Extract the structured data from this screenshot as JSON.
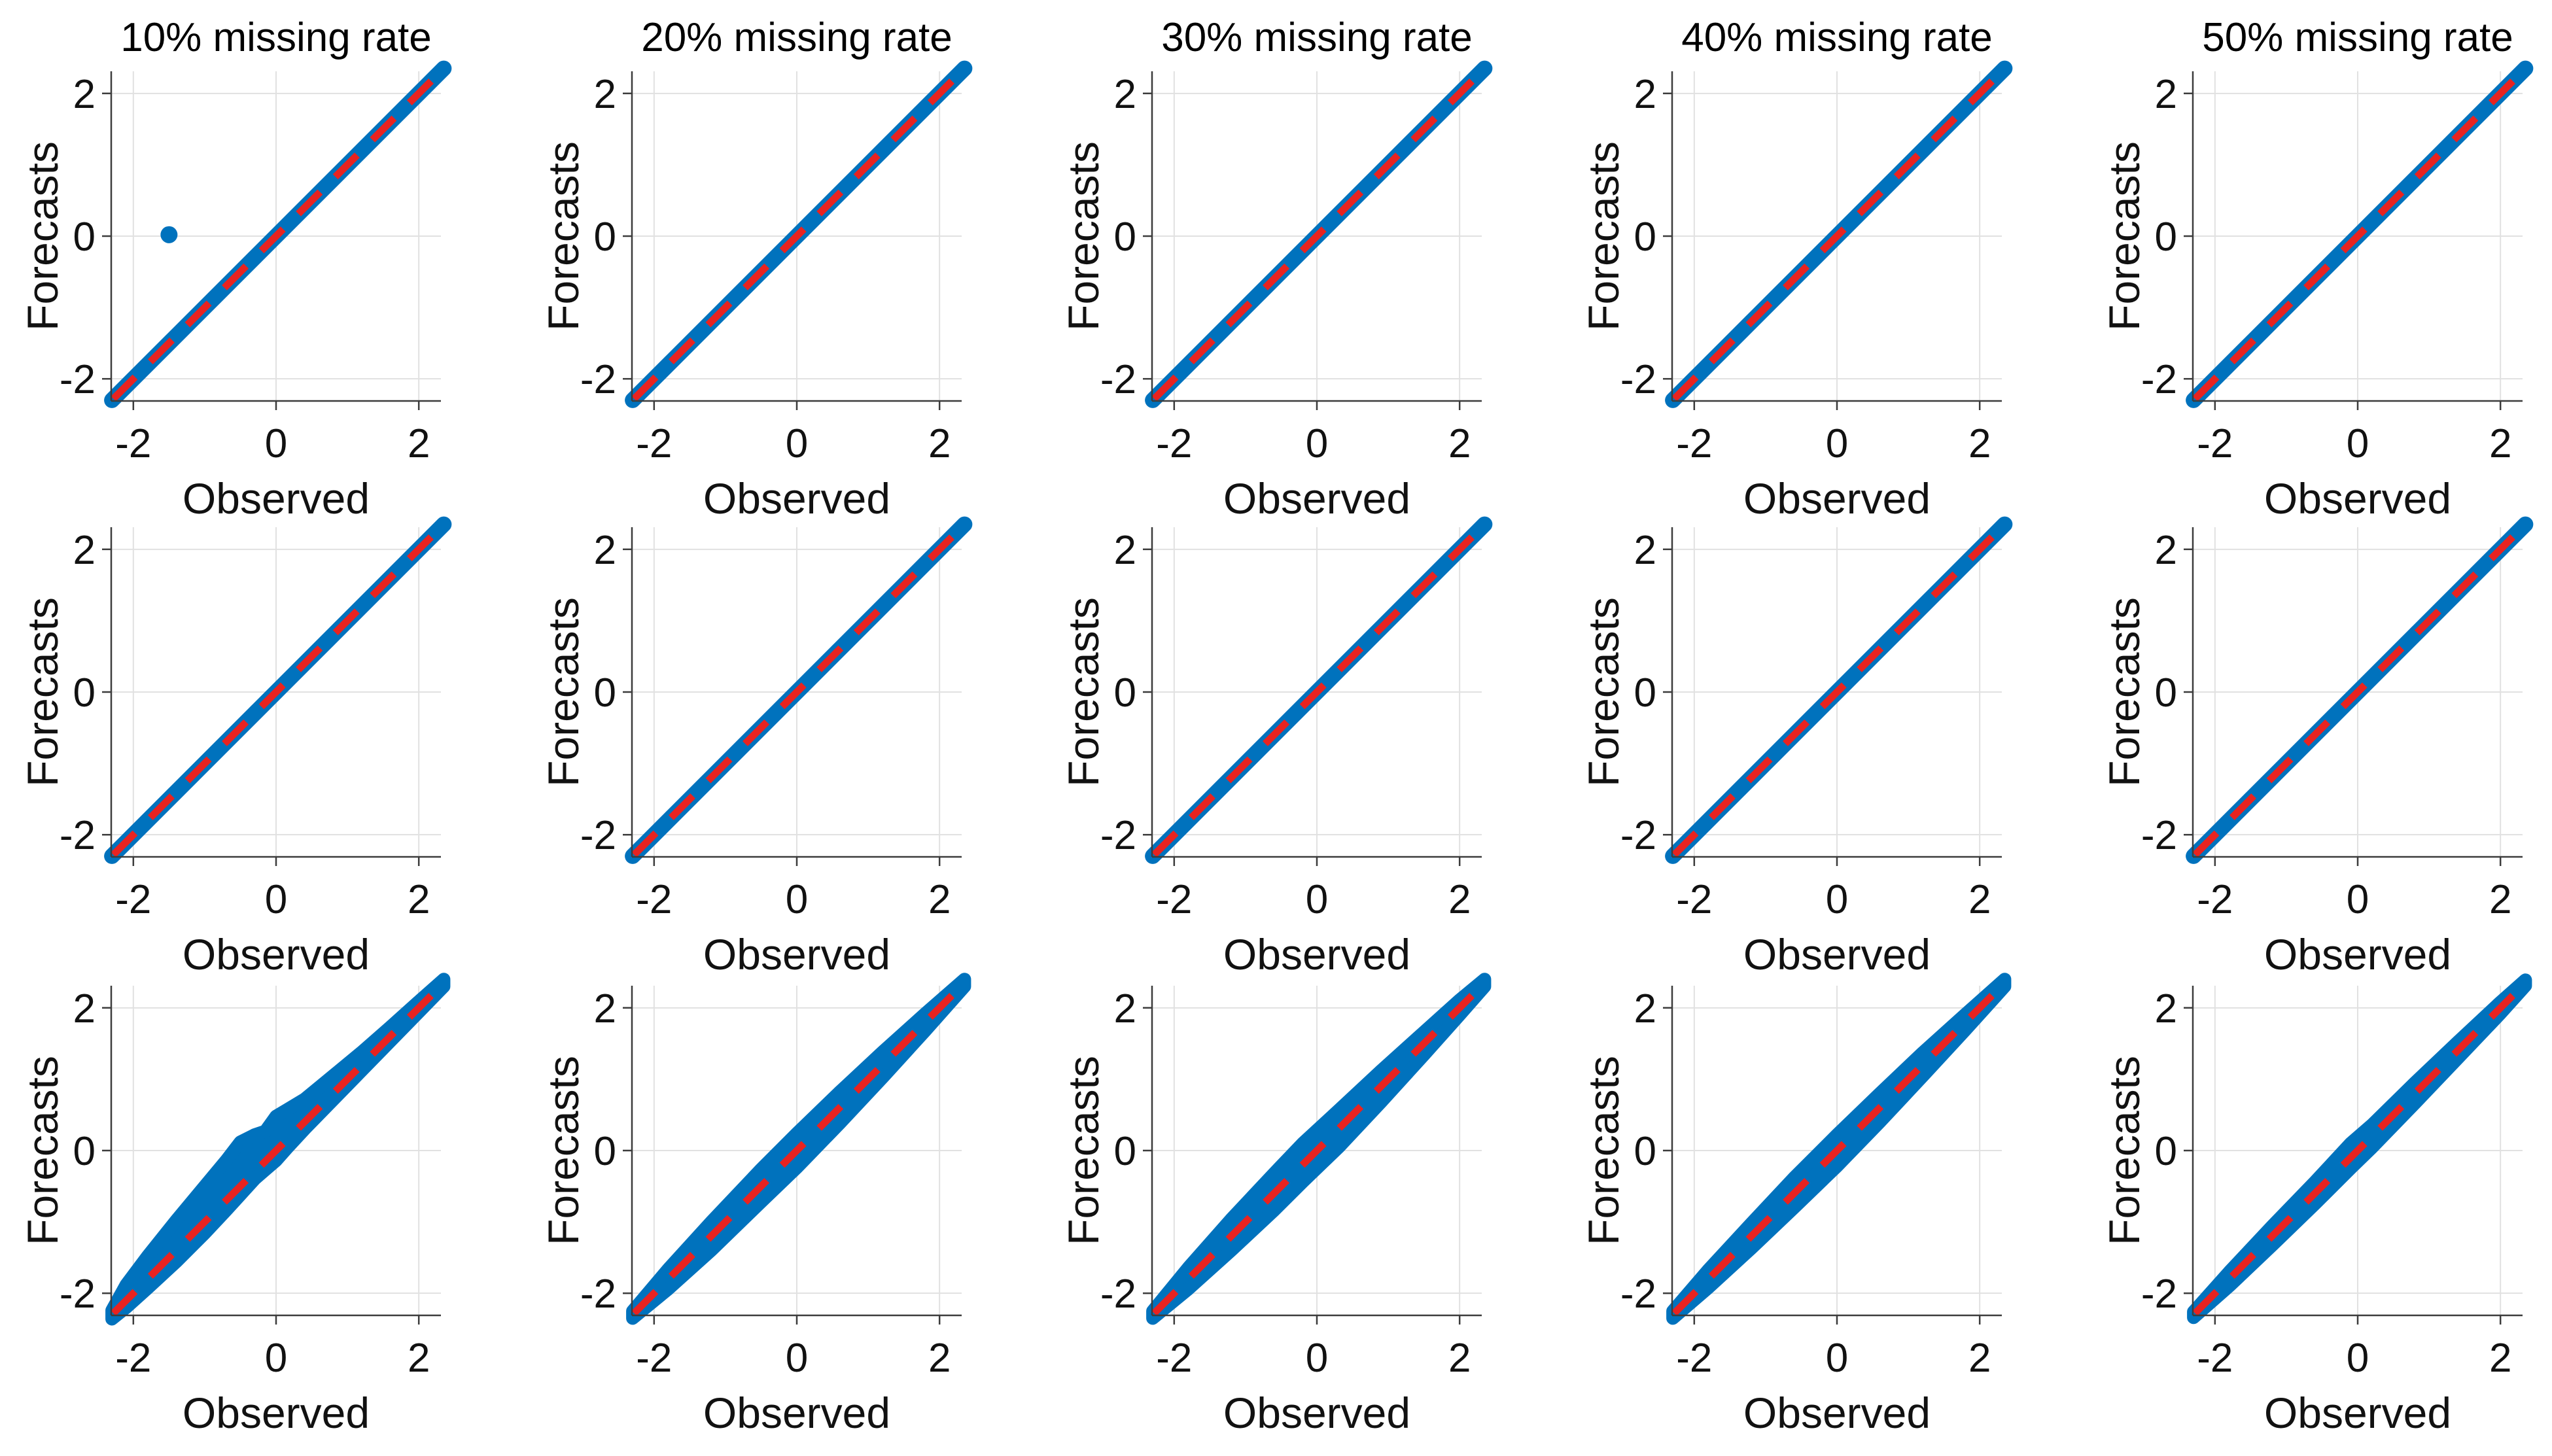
{
  "figure": {
    "kind": "scatter-grid",
    "rows": 3,
    "cols": 5,
    "background": "#ffffff",
    "xlabel": "Observed",
    "ylabel": "Forecasts",
    "colors": {
      "scatter": "#0072BD",
      "identity_line": "#E82320",
      "grid": "#E1E1E1",
      "axis": "#3C3C3C",
      "text": "#111111"
    }
  },
  "chart_data": [
    {
      "type": "scatter",
      "row": 0,
      "col": 0,
      "title": "10% missing rate",
      "xlabel": "Observed",
      "ylabel": "Forecasts",
      "xlim": [
        -2.31,
        2.31
      ],
      "ylim": [
        -2.31,
        2.31
      ],
      "xticks": [
        -2,
        0,
        2
      ],
      "yticks": [
        -2,
        0,
        2
      ],
      "grid": true,
      "identity_line": {
        "from": [
          -2.28,
          -2.28
        ],
        "to": [
          2.33,
          2.33
        ],
        "style": "dashed"
      },
      "cloud": {
        "diag_range": [
          -2.3,
          2.35
        ],
        "band": [
          [
            -2.3,
            0.11,
            -0.11
          ],
          [
            2.35,
            0.11,
            -0.11
          ]
        ]
      },
      "outliers": [
        [
          -1.5,
          0.02
        ]
      ]
    },
    {
      "type": "scatter",
      "row": 0,
      "col": 1,
      "title": "20% missing rate",
      "xlabel": "Observed",
      "ylabel": "Forecasts",
      "xlim": [
        -2.31,
        2.31
      ],
      "ylim": [
        -2.31,
        2.31
      ],
      "xticks": [
        -2,
        0,
        2
      ],
      "yticks": [
        -2,
        0,
        2
      ],
      "grid": true,
      "identity_line": {
        "from": [
          -2.28,
          -2.28
        ],
        "to": [
          2.33,
          2.33
        ],
        "style": "dashed"
      },
      "cloud": {
        "diag_range": [
          -2.3,
          2.35
        ],
        "band": [
          [
            -2.3,
            0.11,
            -0.11
          ],
          [
            2.35,
            0.11,
            -0.11
          ]
        ]
      },
      "outliers": []
    },
    {
      "type": "scatter",
      "row": 0,
      "col": 2,
      "title": "30% missing rate",
      "xlabel": "Observed",
      "ylabel": "Forecasts",
      "xlim": [
        -2.31,
        2.31
      ],
      "ylim": [
        -2.31,
        2.31
      ],
      "xticks": [
        -2,
        0,
        2
      ],
      "yticks": [
        -2,
        0,
        2
      ],
      "grid": true,
      "identity_line": {
        "from": [
          -2.28,
          -2.28
        ],
        "to": [
          2.33,
          2.33
        ],
        "style": "dashed"
      },
      "cloud": {
        "diag_range": [
          -2.3,
          2.35
        ],
        "band": [
          [
            -2.3,
            0.11,
            -0.11
          ],
          [
            2.35,
            0.11,
            -0.11
          ]
        ]
      },
      "outliers": []
    },
    {
      "type": "scatter",
      "row": 0,
      "col": 3,
      "title": "40% missing rate",
      "xlabel": "Observed",
      "ylabel": "Forecasts",
      "xlim": [
        -2.31,
        2.31
      ],
      "ylim": [
        -2.31,
        2.31
      ],
      "xticks": [
        -2,
        0,
        2
      ],
      "yticks": [
        -2,
        0,
        2
      ],
      "grid": true,
      "identity_line": {
        "from": [
          -2.28,
          -2.28
        ],
        "to": [
          2.33,
          2.33
        ],
        "style": "dashed"
      },
      "cloud": {
        "diag_range": [
          -2.3,
          2.35
        ],
        "band": [
          [
            -2.3,
            0.11,
            -0.11
          ],
          [
            2.35,
            0.11,
            -0.11
          ]
        ]
      },
      "outliers": []
    },
    {
      "type": "scatter",
      "row": 0,
      "col": 4,
      "title": "50% missing rate",
      "xlabel": "Observed",
      "ylabel": "Forecasts",
      "xlim": [
        -2.31,
        2.31
      ],
      "ylim": [
        -2.31,
        2.31
      ],
      "xticks": [
        -2,
        0,
        2
      ],
      "yticks": [
        -2,
        0,
        2
      ],
      "grid": true,
      "identity_line": {
        "from": [
          -2.28,
          -2.28
        ],
        "to": [
          2.33,
          2.33
        ],
        "style": "dashed"
      },
      "cloud": {
        "diag_range": [
          -2.3,
          2.35
        ],
        "band": [
          [
            -2.3,
            0.11,
            -0.11
          ],
          [
            2.35,
            0.11,
            -0.11
          ]
        ]
      },
      "outliers": []
    },
    {
      "type": "scatter",
      "row": 1,
      "col": 0,
      "title": "",
      "xlabel": "Observed",
      "ylabel": "Forecasts",
      "xlim": [
        -2.31,
        2.31
      ],
      "ylim": [
        -2.31,
        2.31
      ],
      "xticks": [
        -2,
        0,
        2
      ],
      "yticks": [
        -2,
        0,
        2
      ],
      "grid": true,
      "identity_line": {
        "from": [
          -2.28,
          -2.28
        ],
        "to": [
          2.33,
          2.33
        ],
        "style": "dashed"
      },
      "cloud": {
        "diag_range": [
          -2.3,
          2.35
        ],
        "band": [
          [
            -2.3,
            0.11,
            -0.11
          ],
          [
            2.35,
            0.11,
            -0.11
          ]
        ]
      },
      "outliers": []
    },
    {
      "type": "scatter",
      "row": 1,
      "col": 1,
      "title": "",
      "xlabel": "Observed",
      "ylabel": "Forecasts",
      "xlim": [
        -2.31,
        2.31
      ],
      "ylim": [
        -2.31,
        2.31
      ],
      "xticks": [
        -2,
        0,
        2
      ],
      "yticks": [
        -2,
        0,
        2
      ],
      "grid": true,
      "identity_line": {
        "from": [
          -2.28,
          -2.28
        ],
        "to": [
          2.33,
          2.33
        ],
        "style": "dashed"
      },
      "cloud": {
        "diag_range": [
          -2.3,
          2.35
        ],
        "band": [
          [
            -2.3,
            0.11,
            -0.11
          ],
          [
            2.35,
            0.11,
            -0.11
          ]
        ]
      },
      "outliers": []
    },
    {
      "type": "scatter",
      "row": 1,
      "col": 2,
      "title": "",
      "xlabel": "Observed",
      "ylabel": "Forecasts",
      "xlim": [
        -2.31,
        2.31
      ],
      "ylim": [
        -2.31,
        2.31
      ],
      "xticks": [
        -2,
        0,
        2
      ],
      "yticks": [
        -2,
        0,
        2
      ],
      "grid": true,
      "identity_line": {
        "from": [
          -2.28,
          -2.28
        ],
        "to": [
          2.33,
          2.33
        ],
        "style": "dashed"
      },
      "cloud": {
        "diag_range": [
          -2.3,
          2.35
        ],
        "band": [
          [
            -2.3,
            0.11,
            -0.11
          ],
          [
            2.35,
            0.11,
            -0.11
          ]
        ]
      },
      "outliers": []
    },
    {
      "type": "scatter",
      "row": 1,
      "col": 3,
      "title": "",
      "xlabel": "Observed",
      "ylabel": "Forecasts",
      "xlim": [
        -2.31,
        2.31
      ],
      "ylim": [
        -2.31,
        2.31
      ],
      "xticks": [
        -2,
        0,
        2
      ],
      "yticks": [
        -2,
        0,
        2
      ],
      "grid": true,
      "identity_line": {
        "from": [
          -2.28,
          -2.28
        ],
        "to": [
          2.33,
          2.33
        ],
        "style": "dashed"
      },
      "cloud": {
        "diag_range": [
          -2.3,
          2.35
        ],
        "band": [
          [
            -2.3,
            0.11,
            -0.11
          ],
          [
            2.35,
            0.11,
            -0.11
          ]
        ]
      },
      "outliers": []
    },
    {
      "type": "scatter",
      "row": 1,
      "col": 4,
      "title": "",
      "xlabel": "Observed",
      "ylabel": "Forecasts",
      "xlim": [
        -2.31,
        2.31
      ],
      "ylim": [
        -2.31,
        2.31
      ],
      "xticks": [
        -2,
        0,
        2
      ],
      "yticks": [
        -2,
        0,
        2
      ],
      "grid": true,
      "identity_line": {
        "from": [
          -2.28,
          -2.28
        ],
        "to": [
          2.33,
          2.33
        ],
        "style": "dashed"
      },
      "cloud": {
        "diag_range": [
          -2.3,
          2.35
        ],
        "band": [
          [
            -2.3,
            0.11,
            -0.11
          ],
          [
            2.35,
            0.11,
            -0.11
          ]
        ]
      },
      "outliers": []
    },
    {
      "type": "scatter",
      "row": 2,
      "col": 0,
      "title": "",
      "xlabel": "Observed",
      "ylabel": "Forecasts",
      "xlim": [
        -2.31,
        2.31
      ],
      "ylim": [
        -2.31,
        2.31
      ],
      "xticks": [
        -2,
        0,
        2
      ],
      "yticks": [
        -2,
        0,
        2
      ],
      "grid": true,
      "identity_line": {
        "from": [
          -2.28,
          -2.28
        ],
        "to": [
          2.33,
          2.33
        ],
        "style": "dashed"
      },
      "cloud": {
        "diag_range": [
          -2.3,
          2.35
        ],
        "band": [
          [
            -2.3,
            0.06,
            -0.06
          ],
          [
            -2.1,
            0.22,
            -0.1
          ],
          [
            -1.8,
            0.32,
            -0.13
          ],
          [
            -1.4,
            0.42,
            -0.16
          ],
          [
            -1.0,
            0.5,
            -0.16
          ],
          [
            -0.7,
            0.56,
            -0.14
          ],
          [
            -0.5,
            0.62,
            -0.12
          ],
          [
            -0.3,
            0.52,
            -0.1
          ],
          [
            -0.15,
            0.42,
            -0.12
          ],
          [
            0.0,
            0.48,
            -0.14
          ],
          [
            0.15,
            0.42,
            -0.12
          ],
          [
            0.4,
            0.32,
            -0.1
          ],
          [
            0.8,
            0.25,
            -0.09
          ],
          [
            1.2,
            0.18,
            -0.08
          ],
          [
            1.6,
            0.13,
            -0.07
          ],
          [
            2.0,
            0.09,
            -0.06
          ],
          [
            2.35,
            0.05,
            -0.05
          ]
        ]
      },
      "outliers": []
    },
    {
      "type": "scatter",
      "row": 2,
      "col": 1,
      "title": "",
      "xlabel": "Observed",
      "ylabel": "Forecasts",
      "xlim": [
        -2.31,
        2.31
      ],
      "ylim": [
        -2.31,
        2.31
      ],
      "xticks": [
        -2,
        0,
        2
      ],
      "yticks": [
        -2,
        0,
        2
      ],
      "grid": true,
      "identity_line": {
        "from": [
          -2.28,
          -2.28
        ],
        "to": [
          2.33,
          2.33
        ],
        "style": "dashed"
      },
      "cloud": {
        "diag_range": [
          -2.3,
          2.35
        ],
        "band": [
          [
            -2.3,
            0.05,
            -0.05
          ],
          [
            -1.8,
            0.14,
            -0.14
          ],
          [
            -1.2,
            0.2,
            -0.2
          ],
          [
            -0.5,
            0.24,
            -0.22
          ],
          [
            0.0,
            0.24,
            -0.24
          ],
          [
            0.6,
            0.22,
            -0.22
          ],
          [
            1.2,
            0.18,
            -0.18
          ],
          [
            1.8,
            0.12,
            -0.12
          ],
          [
            2.35,
            0.05,
            -0.05
          ]
        ]
      },
      "outliers": []
    },
    {
      "type": "scatter",
      "row": 2,
      "col": 2,
      "title": "",
      "xlabel": "Observed",
      "ylabel": "Forecasts",
      "xlim": [
        -2.31,
        2.31
      ],
      "ylim": [
        -2.31,
        2.31
      ],
      "xticks": [
        -2,
        0,
        2
      ],
      "yticks": [
        -2,
        0,
        2
      ],
      "grid": true,
      "identity_line": {
        "from": [
          -2.28,
          -2.28
        ],
        "to": [
          2.33,
          2.33
        ],
        "style": "dashed"
      },
      "cloud": {
        "diag_range": [
          -2.3,
          2.35
        ],
        "band": [
          [
            -2.3,
            0.05,
            -0.05
          ],
          [
            -1.8,
            0.16,
            -0.14
          ],
          [
            -1.2,
            0.24,
            -0.2
          ],
          [
            -0.6,
            0.28,
            -0.24
          ],
          [
            -0.2,
            0.3,
            -0.24
          ],
          [
            0.3,
            0.26,
            -0.26
          ],
          [
            0.9,
            0.22,
            -0.22
          ],
          [
            1.5,
            0.16,
            -0.16
          ],
          [
            2.0,
            0.11,
            -0.1
          ],
          [
            2.35,
            0.05,
            -0.05
          ]
        ]
      },
      "outliers": []
    },
    {
      "type": "scatter",
      "row": 2,
      "col": 3,
      "title": "",
      "xlabel": "Observed",
      "ylabel": "Forecasts",
      "xlim": [
        -2.31,
        2.31
      ],
      "ylim": [
        -2.31,
        2.31
      ],
      "xticks": [
        -2,
        0,
        2
      ],
      "yticks": [
        -2,
        0,
        2
      ],
      "grid": true,
      "identity_line": {
        "from": [
          -2.28,
          -2.28
        ],
        "to": [
          2.33,
          2.33
        ],
        "style": "dashed"
      },
      "cloud": {
        "diag_range": [
          -2.3,
          2.35
        ],
        "band": [
          [
            -2.3,
            0.05,
            -0.05
          ],
          [
            -1.8,
            0.13,
            -0.12
          ],
          [
            -1.2,
            0.18,
            -0.17
          ],
          [
            -0.6,
            0.22,
            -0.2
          ],
          [
            0.0,
            0.22,
            -0.22
          ],
          [
            0.6,
            0.2,
            -0.2
          ],
          [
            1.2,
            0.17,
            -0.16
          ],
          [
            1.8,
            0.11,
            -0.11
          ],
          [
            2.35,
            0.05,
            -0.05
          ]
        ]
      },
      "outliers": []
    },
    {
      "type": "scatter",
      "row": 2,
      "col": 4,
      "title": "",
      "xlabel": "Observed",
      "ylabel": "Forecasts",
      "xlim": [
        -2.31,
        2.31
      ],
      "ylim": [
        -2.31,
        2.31
      ],
      "xticks": [
        -2,
        0,
        2
      ],
      "yticks": [
        -2,
        0,
        2
      ],
      "grid": true,
      "identity_line": {
        "from": [
          -2.28,
          -2.28
        ],
        "to": [
          2.33,
          2.33
        ],
        "style": "dashed"
      },
      "cloud": {
        "diag_range": [
          -2.3,
          2.35
        ],
        "band": [
          [
            -2.3,
            0.04,
            -0.04
          ],
          [
            -1.8,
            0.1,
            -0.1
          ],
          [
            -1.2,
            0.14,
            -0.13
          ],
          [
            -0.6,
            0.16,
            -0.15
          ],
          [
            -0.1,
            0.2,
            -0.15
          ],
          [
            0.2,
            0.16,
            -0.16
          ],
          [
            0.8,
            0.15,
            -0.14
          ],
          [
            1.4,
            0.12,
            -0.11
          ],
          [
            2.0,
            0.08,
            -0.08
          ],
          [
            2.35,
            0.04,
            -0.04
          ]
        ]
      },
      "outliers": []
    }
  ]
}
